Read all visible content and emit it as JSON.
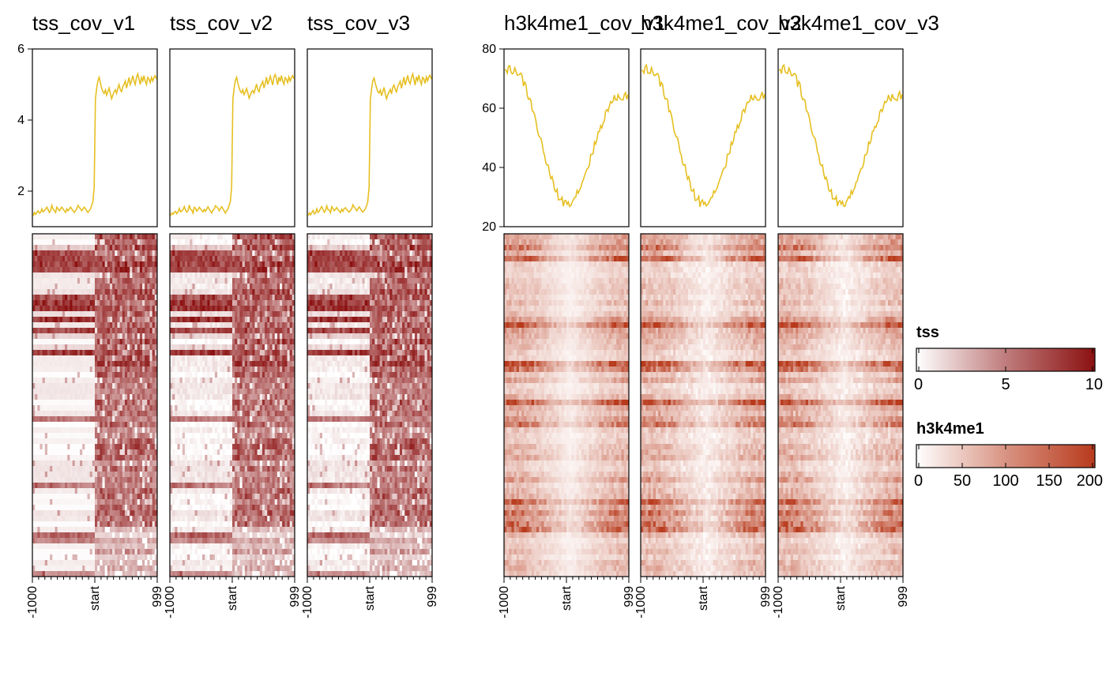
{
  "chart_data": {
    "type": "heatmap",
    "groups": [
      {
        "signal": "tss",
        "samples": [
          "tss_cov_v1",
          "tss_cov_v2",
          "tss_cov_v3"
        ],
        "profile_ylim": [
          1.0,
          6.0
        ],
        "profile_yticks": [
          2,
          4,
          6
        ],
        "profile_line_color": "#e6bf22",
        "heatmap_pattern": "step",
        "x_tick_labels": [
          "-1000",
          "start",
          "999"
        ],
        "profile": {
          "x_bins": 100,
          "start_bin": 50,
          "values_before_start": [
            1.3,
            1.4,
            1.35,
            1.4,
            1.45,
            1.38,
            1.4,
            1.5,
            1.42,
            1.45,
            1.5,
            1.55,
            1.48,
            1.4,
            1.45,
            1.6,
            1.5,
            1.45,
            1.4,
            1.55,
            1.5,
            1.45,
            1.5,
            1.55,
            1.5,
            1.45,
            1.4,
            1.5,
            1.45,
            1.5,
            1.55,
            1.5,
            1.45,
            1.4,
            1.45,
            1.5,
            1.6,
            1.55,
            1.5,
            1.45,
            1.5,
            1.55,
            1.5,
            1.45,
            1.4,
            1.45,
            1.5,
            1.6,
            1.7,
            2.1
          ],
          "values_after_start": [
            4.6,
            4.9,
            5.1,
            5.2,
            5.05,
            4.9,
            4.8,
            4.75,
            4.85,
            4.7,
            4.8,
            4.9,
            4.75,
            4.6,
            4.7,
            4.8,
            4.85,
            4.75,
            4.9,
            5.0,
            4.85,
            4.8,
            4.95,
            5.0,
            5.1,
            4.9,
            5.05,
            5.2,
            5.0,
            5.1,
            5.25,
            5.1,
            5.0,
            5.2,
            5.3,
            5.15,
            5.0,
            5.2,
            5.1,
            5.25,
            5.1,
            5.0,
            5.2,
            5.15,
            5.05,
            5.2,
            5.1,
            5.2,
            5.25,
            5.15
          ]
        }
      },
      {
        "signal": "h3k4me1",
        "samples": [
          "h3k4me1_cov_v1",
          "h3k4me1_cov_v2",
          "h3k4me1_cov_v3"
        ],
        "profile_ylim": [
          20,
          80
        ],
        "profile_yticks": [
          20,
          40,
          60,
          80
        ],
        "profile_line_color": "#e6bf22",
        "heatmap_pattern": "valley",
        "x_tick_labels": [
          "-1000",
          "start",
          "999"
        ],
        "profile": {
          "x_bins": 100,
          "start_bin": 50,
          "valley_depth": 28,
          "left_level": 73,
          "right_level": 64
        }
      }
    ],
    "legends": [
      {
        "title": "tss",
        "ticks": [
          "0",
          "5",
          "10"
        ],
        "min": 0,
        "max": 10,
        "color_low": "#ffffff",
        "color_high": "#8b1010"
      },
      {
        "title": "h3k4me1",
        "ticks": [
          "0",
          "50",
          "100",
          "150",
          "200"
        ],
        "min": 0,
        "max": 200,
        "color_low": "#ffffff",
        "color_high": "#b83a1c"
      }
    ]
  }
}
